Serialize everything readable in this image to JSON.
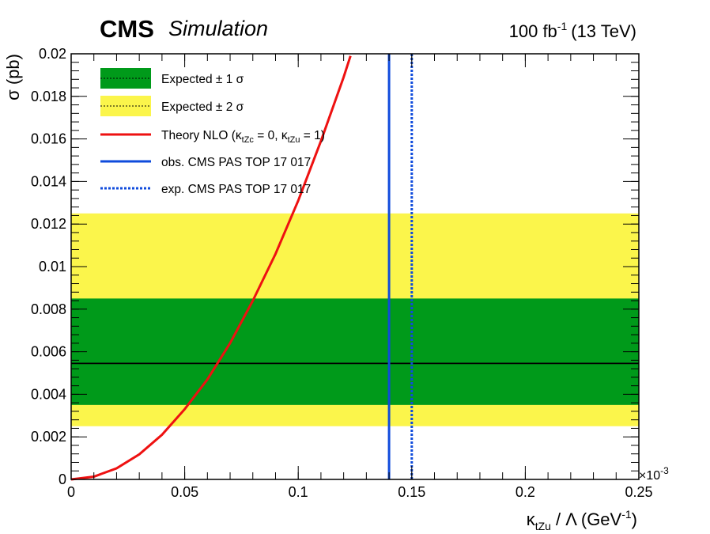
{
  "header": {
    "experiment": "CMS",
    "status": "Simulation",
    "lumi_value": "100 fb",
    "lumi_exp": "-1",
    "lumi_energy": "(13 TeV)"
  },
  "axes": {
    "x_multiplier_base": "×10",
    "x_multiplier_exp": "-3",
    "xlabel_kappa": "κ",
    "xlabel_sub": "tZu",
    "xlabel_rest": " / Λ (GeV",
    "xlabel_exp": "-1",
    "xlabel_close": ")",
    "ylabel": "σ (pb)"
  },
  "colors": {
    "band_1sigma": "#009a1a",
    "band_2sigma": "#fbf54b",
    "theory": "#ee1111",
    "observed": "#0f4bdc",
    "expected_line": "#000000"
  },
  "legend": {
    "items": [
      {
        "text": "Expected ± 1 σ"
      },
      {
        "text": "Expected ± 2 σ"
      },
      {
        "text": "Theory NLO (κ",
        "sub1": "tZc",
        "mid": " = 0, κ",
        "sub2": "tZu",
        "end": " = 1)"
      },
      {
        "text": "obs. CMS PAS TOP 17 017"
      },
      {
        "text": "exp. CMS PAS TOP 17 017"
      }
    ]
  },
  "chart_data": {
    "type": "line",
    "xlim": [
      0,
      0.25
    ],
    "ylim": [
      0,
      0.02
    ],
    "x_ticks": [
      0,
      0.05,
      0.1,
      0.15,
      0.2,
      0.25
    ],
    "x_tick_labels": [
      "0",
      "0.05",
      "0.1",
      "0.15",
      "0.2",
      "0.25"
    ],
    "y_ticks": [
      0,
      0.002,
      0.004,
      0.006,
      0.008,
      0.01,
      0.012,
      0.014,
      0.016,
      0.018,
      0.02
    ],
    "y_tick_labels": [
      "0",
      "0.002",
      "0.004",
      "0.006",
      "0.008",
      "0.01",
      "0.012",
      "0.014",
      "0.016",
      "0.018",
      "0.02"
    ],
    "expected_limit": 0.00545,
    "band_1sigma": [
      0.0035,
      0.0085
    ],
    "band_2sigma": [
      0.0025,
      0.0125
    ],
    "theory_curve": {
      "x": [
        0,
        0.01,
        0.02,
        0.03,
        0.04,
        0.05,
        0.06,
        0.07,
        0.08,
        0.09,
        0.1,
        0.11,
        0.12,
        0.123
      ],
      "y": [
        0,
        0.00013,
        0.00052,
        0.00118,
        0.0021,
        0.0033,
        0.0047,
        0.0064,
        0.0084,
        0.0106,
        0.0131,
        0.0159,
        0.0189,
        0.0199
      ]
    },
    "observed_x": 0.14,
    "expected_x": 0.15
  }
}
